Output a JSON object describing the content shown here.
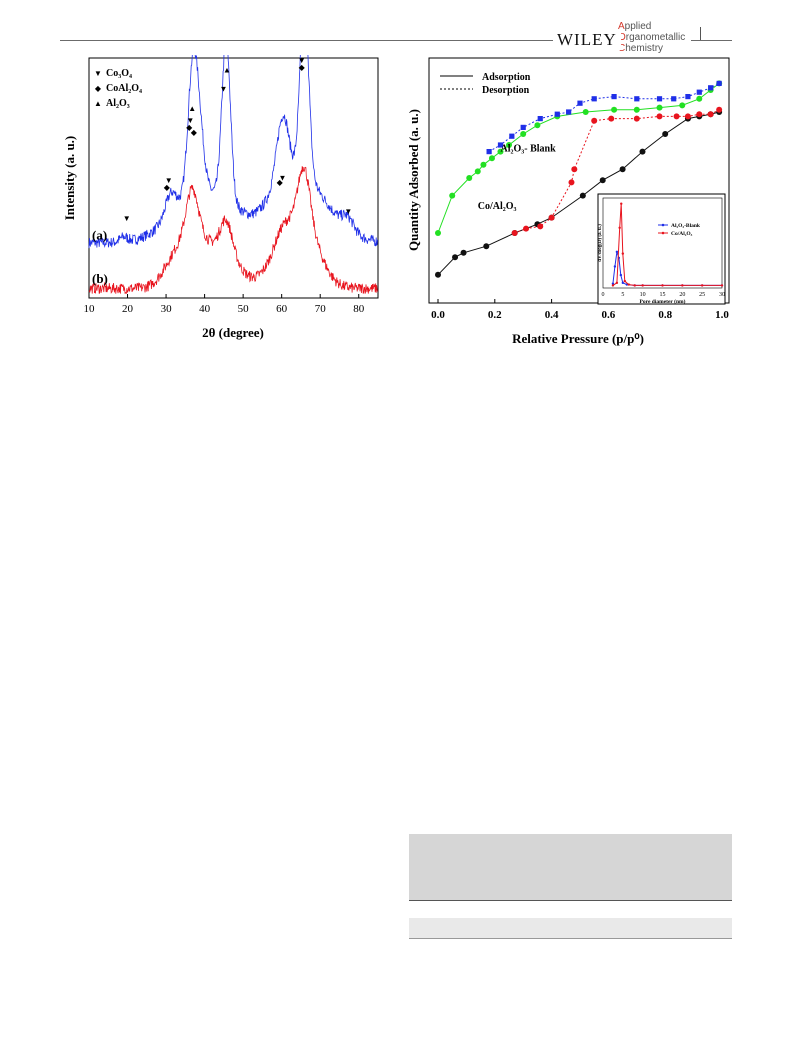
{
  "header": {
    "publisher": "WILEY",
    "journal_lines": [
      "Applied",
      "Organometallic",
      "Chemistry"
    ]
  },
  "colors": {
    "blue": "#1f2fe8",
    "red": "#e8141e",
    "green": "#22e022",
    "black": "#111111",
    "header_red": "#d4382b",
    "table_gray": "#d6d6d6"
  },
  "chart_data": [
    {
      "type": "line",
      "xlabel": "2θ (degree)",
      "ylabel": "Intensity (a. u.)",
      "xlim": [
        10,
        85
      ],
      "xticks": [
        "10",
        "20",
        "30",
        "40",
        "50",
        "60",
        "70",
        "80"
      ],
      "legend": [
        {
          "marker": "▼",
          "label": "Co₃O₄"
        },
        {
          "marker": "◆",
          "label": "CoAl₂O₄"
        },
        {
          "marker": "▲",
          "label": "Al₂O₃"
        }
      ],
      "series": [
        {
          "name": "(a)",
          "color": "#1f2fe8",
          "baseline": 0.23,
          "peaks": [
            [
              19.0,
              0.02,
              1.0
            ],
            [
              31.3,
              0.1,
              1.5
            ],
            [
              36.9,
              0.52,
              1.3
            ],
            [
              38.7,
              0.22,
              1.3
            ],
            [
              45.6,
              0.66,
              1.1
            ],
            [
              59.4,
              0.14,
              1.3
            ],
            [
              60.9,
              0.16,
              1.2
            ],
            [
              65.9,
              0.74,
              1.1
            ],
            [
              77.2,
              0.05,
              1.5
            ]
          ],
          "broad": [
            [
              37.5,
              0.16,
              7.0
            ],
            [
              45.6,
              0.1,
              5.0
            ],
            [
              66.0,
              0.22,
              7.0
            ],
            [
              60.5,
              0.12,
              5.0
            ]
          ]
        },
        {
          "name": "(b)",
          "color": "#e8141e",
          "baseline": 0.04,
          "peaks": [
            [
              36.8,
              0.18,
              1.5
            ],
            [
              45.6,
              0.12,
              1.5
            ],
            [
              65.8,
              0.22,
              1.5
            ],
            [
              60.0,
              0.06,
              2.0
            ]
          ],
          "broad": [
            [
              37.2,
              0.22,
              4.0
            ],
            [
              45.6,
              0.14,
              3.5
            ],
            [
              60.3,
              0.12,
              4.5
            ],
            [
              66.0,
              0.23,
              4.0
            ],
            [
              31.5,
              0.06,
              3.0
            ]
          ]
        }
      ],
      "markers": [
        {
          "x": 19.8,
          "y": 0.32,
          "symbol": "▼"
        },
        {
          "x": 30.7,
          "y": 0.48,
          "symbol": "▼"
        },
        {
          "x": 30.2,
          "y": 0.45,
          "symbol": "◆"
        },
        {
          "x": 36.3,
          "y": 0.73,
          "symbol": "▼"
        },
        {
          "x": 36.8,
          "y": 0.78,
          "symbol": "▲"
        },
        {
          "x": 36.0,
          "y": 0.7,
          "symbol": "◆"
        },
        {
          "x": 37.2,
          "y": 0.68,
          "symbol": "◆"
        },
        {
          "x": 44.9,
          "y": 0.86,
          "symbol": "▼"
        },
        {
          "x": 45.8,
          "y": 0.94,
          "symbol": "▲"
        },
        {
          "x": 59.5,
          "y": 0.47,
          "symbol": "◆"
        },
        {
          "x": 60.2,
          "y": 0.49,
          "symbol": "▼"
        },
        {
          "x": 65.2,
          "y": 0.98,
          "symbol": "▼"
        },
        {
          "x": 66.0,
          "y": 1.02,
          "symbol": "▲"
        },
        {
          "x": 65.2,
          "y": 0.95,
          "symbol": "◆"
        },
        {
          "x": 77.3,
          "y": 0.35,
          "symbol": "▼"
        }
      ],
      "series_labels": [
        {
          "text": "(a)",
          "y": 0.26
        },
        {
          "text": "(b)",
          "y": 0.08
        }
      ]
    },
    {
      "type": "scatter",
      "xlabel": "Relative Pressure (p/p⁰)",
      "ylabel": "Quantity Adsorbed (a. u.)",
      "xlim": [
        0.0,
        1.0
      ],
      "xticks": [
        "0.0",
        "0.2",
        "0.4",
        "0.6",
        "0.8",
        "1.0"
      ],
      "legend": [
        {
          "style": "solid",
          "label": "Adsorption"
        },
        {
          "style": "dashed",
          "label": "Desorption"
        }
      ],
      "annotations": [
        {
          "text": "Al₂O₃- Blank",
          "x": 0.22,
          "y": 0.62
        },
        {
          "text": "Co/Al₂O₃",
          "x": 0.14,
          "y": 0.36
        }
      ],
      "series": [
        {
          "name": "Al₂O₃- Blank adsorption",
          "color": "#22e022",
          "values": [
            [
              0.0,
              0.25
            ],
            [
              0.05,
              0.42
            ],
            [
              0.11,
              0.5
            ],
            [
              0.14,
              0.53
            ],
            [
              0.16,
              0.56
            ],
            [
              0.19,
              0.59
            ],
            [
              0.22,
              0.62
            ],
            [
              0.25,
              0.65
            ],
            [
              0.3,
              0.7
            ],
            [
              0.35,
              0.74
            ],
            [
              0.42,
              0.78
            ],
            [
              0.52,
              0.8
            ],
            [
              0.62,
              0.81
            ],
            [
              0.7,
              0.81
            ],
            [
              0.78,
              0.82
            ],
            [
              0.86,
              0.83
            ],
            [
              0.92,
              0.86
            ],
            [
              0.96,
              0.9
            ],
            [
              0.99,
              0.93
            ]
          ]
        },
        {
          "name": "Al₂O₃- Blank desorption",
          "color": "#1f2fe8",
          "values": [
            [
              0.18,
              0.62
            ],
            [
              0.22,
              0.65
            ],
            [
              0.26,
              0.69
            ],
            [
              0.3,
              0.73
            ],
            [
              0.36,
              0.77
            ],
            [
              0.42,
              0.79
            ],
            [
              0.46,
              0.8
            ],
            [
              0.5,
              0.84
            ],
            [
              0.55,
              0.86
            ],
            [
              0.62,
              0.87
            ],
            [
              0.7,
              0.86
            ],
            [
              0.78,
              0.86
            ],
            [
              0.83,
              0.86
            ],
            [
              0.88,
              0.87
            ],
            [
              0.92,
              0.89
            ],
            [
              0.96,
              0.91
            ],
            [
              0.99,
              0.93
            ]
          ]
        },
        {
          "name": "Co/Al₂O₃ adsorption",
          "color": "#111111",
          "values": [
            [
              0.0,
              0.06
            ],
            [
              0.06,
              0.14
            ],
            [
              0.09,
              0.16
            ],
            [
              0.17,
              0.19
            ],
            [
              0.27,
              0.25
            ],
            [
              0.35,
              0.29
            ],
            [
              0.4,
              0.32
            ],
            [
              0.51,
              0.42
            ],
            [
              0.58,
              0.49
            ],
            [
              0.65,
              0.54
            ],
            [
              0.72,
              0.62
            ],
            [
              0.8,
              0.7
            ],
            [
              0.88,
              0.77
            ],
            [
              0.92,
              0.78
            ],
            [
              0.96,
              0.79
            ],
            [
              0.99,
              0.8
            ]
          ]
        },
        {
          "name": "Co/Al₂O₃ desorption",
          "color": "#e8141e",
          "values": [
            [
              0.27,
              0.25
            ],
            [
              0.31,
              0.27
            ],
            [
              0.36,
              0.28
            ],
            [
              0.4,
              0.32
            ],
            [
              0.47,
              0.48
            ],
            [
              0.48,
              0.54
            ],
            [
              0.55,
              0.76
            ],
            [
              0.61,
              0.77
            ],
            [
              0.7,
              0.77
            ],
            [
              0.78,
              0.78
            ],
            [
              0.84,
              0.78
            ],
            [
              0.88,
              0.78
            ],
            [
              0.92,
              0.79
            ],
            [
              0.96,
              0.79
            ],
            [
              0.99,
              0.81
            ]
          ]
        }
      ],
      "inset": {
        "type": "line",
        "xlabel": "Pore diameter (nm)",
        "ylabel": "dV/dlog(D) (a. u.)",
        "xlim": [
          0,
          30
        ],
        "xticks": [
          "0",
          "5",
          "10",
          "15",
          "20",
          "25",
          "30"
        ],
        "legend": [
          {
            "label": "Al₂O₃-Blank",
            "color": "#1f2fe8"
          },
          {
            "label": "Co/Al₂O₃",
            "color": "#e8141e"
          }
        ],
        "series": [
          {
            "name": "Al₂O₃-Blank",
            "color": "#1f2fe8",
            "values": [
              [
                2.5,
                0.05
              ],
              [
                3.0,
                0.25
              ],
              [
                3.5,
                0.42
              ],
              [
                4.0,
                0.35
              ],
              [
                4.5,
                0.15
              ],
              [
                5.0,
                0.06
              ],
              [
                6.0,
                0.04
              ],
              [
                8.0,
                0.03
              ],
              [
                10.0,
                0.03
              ],
              [
                15.0,
                0.03
              ],
              [
                20.0,
                0.03
              ],
              [
                25.0,
                0.03
              ],
              [
                30.0,
                0.03
              ]
            ]
          },
          {
            "name": "Co/Al₂O₃",
            "color": "#e8141e",
            "values": [
              [
                2.5,
                0.03
              ],
              [
                3.5,
                0.06
              ],
              [
                4.2,
                0.7
              ],
              [
                4.6,
                0.98
              ],
              [
                5.0,
                0.4
              ],
              [
                5.5,
                0.08
              ],
              [
                6.5,
                0.04
              ],
              [
                8.0,
                0.03
              ],
              [
                10.0,
                0.03
              ],
              [
                15.0,
                0.03
              ],
              [
                20.0,
                0.03
              ],
              [
                25.0,
                0.03
              ],
              [
                30.0,
                0.03
              ]
            ]
          }
        ]
      }
    }
  ]
}
